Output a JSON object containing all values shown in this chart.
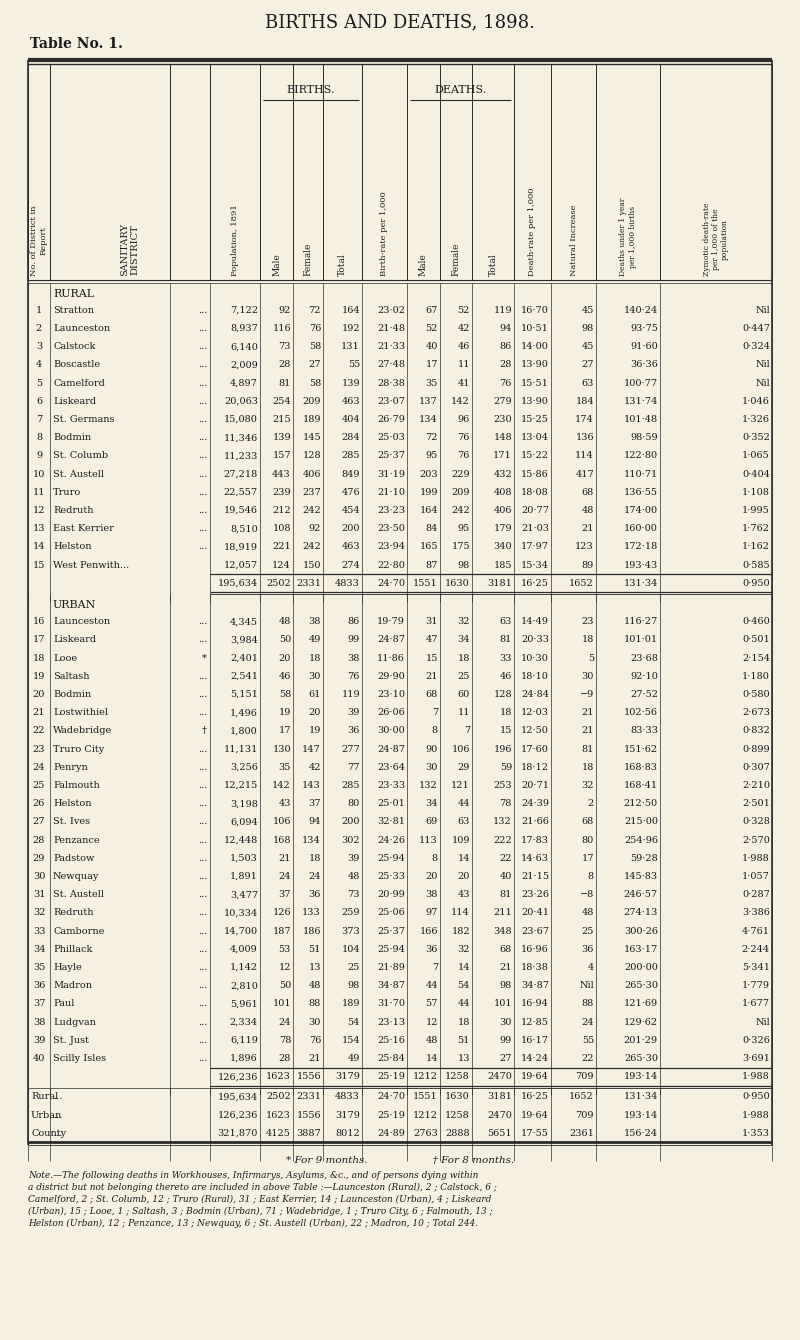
{
  "title": "BIRTHS AND DEATHS, 1898.",
  "table_label": "Table No. 1.",
  "bg_color": "#f5f0e0",
  "text_color": "#1a1a1a",
  "rural_rows": [
    [
      "1",
      "Stratton",
      "...",
      "7,122",
      "92",
      "72",
      "164",
      "23·02",
      "67",
      "52",
      "119",
      "16·70",
      "45",
      "140·24",
      "Nil"
    ],
    [
      "2",
      "Launceston",
      "...",
      "8,937",
      "116",
      "76",
      "192",
      "21·48",
      "52",
      "42",
      "94",
      "10·51",
      "98",
      "93·75",
      "0·447"
    ],
    [
      "3",
      "Calstock",
      "...",
      "6,140",
      "73",
      "58",
      "131",
      "21·33",
      "40",
      "46",
      "86",
      "14·00",
      "45",
      "91·60",
      "0·324"
    ],
    [
      "4",
      "Boscastle",
      "...",
      "2,009",
      "28",
      "27",
      "55",
      "27·48",
      "17",
      "11",
      "28",
      "13·90",
      "27",
      "36·36",
      "Nil"
    ],
    [
      "5",
      "Camelford",
      "...",
      "4,897",
      "81",
      "58",
      "139",
      "28·38",
      "35",
      "41",
      "76",
      "15·51",
      "63",
      "100·77",
      "Nil"
    ],
    [
      "6",
      "Liskeard",
      "...",
      "20,063",
      "254",
      "209",
      "463",
      "23·07",
      "137",
      "142",
      "279",
      "13·90",
      "184",
      "131·74",
      "1·046"
    ],
    [
      "7",
      "St. Germans",
      "...",
      "15,080",
      "215",
      "189",
      "404",
      "26·79",
      "134",
      "96",
      "230",
      "15·25",
      "174",
      "101·48",
      "1·326"
    ],
    [
      "8",
      "Bodmin",
      "...",
      "11,346",
      "139",
      "145",
      "284",
      "25·03",
      "72",
      "76",
      "148",
      "13·04",
      "136",
      "98·59",
      "0·352"
    ],
    [
      "9",
      "St. Columb",
      "...",
      "11,233",
      "157",
      "128",
      "285",
      "25·37",
      "95",
      "76",
      "171",
      "15·22",
      "114",
      "122·80",
      "1·065"
    ],
    [
      "10",
      "St. Austell",
      "...",
      "27,218",
      "443",
      "406",
      "849",
      "31·19",
      "203",
      "229",
      "432",
      "15·86",
      "417",
      "110·71",
      "0·404"
    ],
    [
      "11",
      "Truro",
      "...",
      "22,557",
      "239",
      "237",
      "476",
      "21·10",
      "199",
      "209",
      "408",
      "18·08",
      "68",
      "136·55",
      "1·108"
    ],
    [
      "12",
      "Redruth",
      "...",
      "19,546",
      "212",
      "242",
      "454",
      "23·23",
      "164",
      "242",
      "406",
      "20·77",
      "48",
      "174·00",
      "1·995"
    ],
    [
      "13",
      "East Kerrier",
      "...",
      "8,510",
      "108",
      "92",
      "200",
      "23·50",
      "84",
      "95",
      "179",
      "21·03",
      "21",
      "160·00",
      "1·762"
    ],
    [
      "14",
      "Helston",
      "...",
      "18,919",
      "221",
      "242",
      "463",
      "23·94",
      "165",
      "175",
      "340",
      "17·97",
      "123",
      "172·18",
      "1·162"
    ],
    [
      "15",
      "West Penwith...",
      "",
      "12,057",
      "124",
      "150",
      "274",
      "22·80",
      "87",
      "98",
      "185",
      "15·34",
      "89",
      "193·43",
      "0·585"
    ]
  ],
  "rural_total": [
    "195,634",
    "2502",
    "2331",
    "4833",
    "24·70",
    "1551",
    "1630",
    "3181",
    "16·25",
    "1652",
    "131·34",
    "0·950"
  ],
  "urban_rows": [
    [
      "16",
      "Launceston",
      "...",
      "4,345",
      "48",
      "38",
      "86",
      "19·79",
      "31",
      "32",
      "63",
      "14·49",
      "23",
      "116·27",
      "0·460"
    ],
    [
      "17",
      "Liskeard",
      "...",
      "3,984",
      "50",
      "49",
      "99",
      "24·87",
      "47",
      "34",
      "81",
      "20·33",
      "18",
      "101·01",
      "0·501"
    ],
    [
      "18",
      "Looe",
      "*",
      "2,401",
      "20",
      "18",
      "38",
      "11·86",
      "15",
      "18",
      "33",
      "10·30",
      "5",
      "23·68",
      "2·154"
    ],
    [
      "19",
      "Saltash",
      "...",
      "2,541",
      "46",
      "30",
      "76",
      "29·90",
      "21",
      "25",
      "46",
      "18·10",
      "30",
      "92·10",
      "1·180"
    ],
    [
      "20",
      "Bodmin",
      "...",
      "5,151",
      "58",
      "61",
      "119",
      "23·10",
      "68",
      "60",
      "128",
      "24·84",
      "−9",
      "27·52",
      "0·580"
    ],
    [
      "21",
      "Lostwithiel",
      "...",
      "1,496",
      "19",
      "20",
      "39",
      "26·06",
      "7",
      "11",
      "18",
      "12·03",
      "21",
      "102·56",
      "2·673"
    ],
    [
      "22",
      "Wadebridge",
      "†",
      "1,800",
      "17",
      "19",
      "36",
      "30·00",
      "8",
      "7",
      "15",
      "12·50",
      "21",
      "83·33",
      "0·832"
    ],
    [
      "23",
      "Truro City",
      "...",
      "11,131",
      "130",
      "147",
      "277",
      "24·87",
      "90",
      "106",
      "196",
      "17·60",
      "81",
      "151·62",
      "0·899"
    ],
    [
      "24",
      "Penryn",
      "...",
      "3,256",
      "35",
      "42",
      "77",
      "23·64",
      "30",
      "29",
      "59",
      "18·12",
      "18",
      "168·83",
      "0·307"
    ],
    [
      "25",
      "Falmouth",
      "...",
      "12,215",
      "142",
      "143",
      "285",
      "23·33",
      "132",
      "121",
      "253",
      "20·71",
      "32",
      "168·41",
      "2·210"
    ],
    [
      "26",
      "Helston",
      "...",
      "3,198",
      "43",
      "37",
      "80",
      "25·01",
      "34",
      "44",
      "78",
      "24·39",
      "2",
      "212·50",
      "2·501"
    ],
    [
      "27",
      "St. Ives",
      "...",
      "6,094",
      "106",
      "94",
      "200",
      "32·81",
      "69",
      "63",
      "132",
      "21·66",
      "68",
      "215·00",
      "0·328"
    ],
    [
      "28",
      "Penzance",
      "...",
      "12,448",
      "168",
      "134",
      "302",
      "24·26",
      "113",
      "109",
      "222",
      "17·83",
      "80",
      "254·96",
      "2·570"
    ],
    [
      "29",
      "Padstow",
      "...",
      "1,503",
      "21",
      "18",
      "39",
      "25·94",
      "8",
      "14",
      "22",
      "14·63",
      "17",
      "59·28",
      "1·988"
    ],
    [
      "30",
      "Newquay",
      "...",
      "1,891",
      "24",
      "24",
      "48",
      "25·33",
      "20",
      "20",
      "40",
      "21·15",
      "8",
      "145·83",
      "1·057"
    ],
    [
      "31",
      "St. Austell",
      "...",
      "3,477",
      "37",
      "36",
      "73",
      "20·99",
      "38",
      "43",
      "81",
      "23·26",
      "−8",
      "246·57",
      "0·287"
    ],
    [
      "32",
      "Redruth",
      "...",
      "10,334",
      "126",
      "133",
      "259",
      "25·06",
      "97",
      "114",
      "211",
      "20·41",
      "48",
      "274·13",
      "3·386"
    ],
    [
      "33",
      "Camborne",
      "...",
      "14,700",
      "187",
      "186",
      "373",
      "25·37",
      "166",
      "182",
      "348",
      "23·67",
      "25",
      "300·26",
      "4·761"
    ],
    [
      "34",
      "Phillack",
      "...",
      "4,009",
      "53",
      "51",
      "104",
      "25·94",
      "36",
      "32",
      "68",
      "16·96",
      "36",
      "163·17",
      "2·244"
    ],
    [
      "35",
      "Hayle",
      "...",
      "1,142",
      "12",
      "13",
      "25",
      "21·89",
      "7",
      "14",
      "21",
      "18·38",
      "4",
      "200·00",
      "5·341"
    ],
    [
      "36",
      "Madron",
      "...",
      "2,810",
      "50",
      "48",
      "98",
      "34·87",
      "44",
      "54",
      "98",
      "34·87",
      "Nil",
      "265·30",
      "1·779"
    ],
    [
      "37",
      "Paul",
      "...",
      "5,961",
      "101",
      "88",
      "189",
      "31·70",
      "57",
      "44",
      "101",
      "16·94",
      "88",
      "121·69",
      "1·677"
    ],
    [
      "38",
      "Ludgvan",
      "...",
      "2,334",
      "24",
      "30",
      "54",
      "23·13",
      "12",
      "18",
      "30",
      "12·85",
      "24",
      "129·62",
      "Nil"
    ],
    [
      "39",
      "St. Just",
      "...",
      "6,119",
      "78",
      "76",
      "154",
      "25·16",
      "48",
      "51",
      "99",
      "16·17",
      "55",
      "201·29",
      "0·326"
    ],
    [
      "40",
      "Scilly Isles",
      "...",
      "1,896",
      "28",
      "21",
      "49",
      "25·84",
      "14",
      "13",
      "27",
      "14·24",
      "22",
      "265·30",
      "3·691"
    ]
  ],
  "urban_total": [
    "126,236",
    "1623",
    "1556",
    "3179",
    "25·19",
    "1212",
    "1258",
    "2470",
    "19·64",
    "709",
    "193·14",
    "1·988"
  ],
  "summary_rows": [
    [
      "Rural",
      "...",
      "195,634",
      "2502",
      "2331",
      "4833",
      "24·70",
      "1551",
      "1630",
      "3181",
      "16·25",
      "1652",
      "131·34",
      "0·950"
    ],
    [
      "Urban",
      "...",
      "126,236",
      "1623",
      "1556",
      "3179",
      "25·19",
      "1212",
      "1258",
      "2470",
      "19·64",
      "709",
      "193·14",
      "1·988"
    ],
    [
      "County",
      "...",
      "321,870",
      "4125",
      "3887",
      "8012",
      "24·89",
      "2763",
      "2888",
      "5651",
      "17·55",
      "2361",
      "156·24",
      "1·353"
    ]
  ],
  "footnote1": "* For 9 months.                    † For 8 months.",
  "footnote_note": [
    "Note.—The following deaths in Workhouses, Infirmarys, Asylums, &c., and of persons dying within",
    "a district but not belonging thereto are included in above Table :—Launceston (Rural), 2 ; Calstock, 6 ;",
    "Camelford, 2 ; St. Columb, 12 ; Truro (Rural), 31 ; East Kerrier, 14 ; Launceston (Urban), 4 ; Liskeard",
    "(Urban), 15 ; Looe, 1 ; Saltash, 3 ; Bodmin (Urban), 71 ; Wadebridge, 1 ; Truro City, 6 ; Falmouth, 13 ;",
    "Helston (Urban), 12 ; Penzance, 13 ; Newquay, 6 ; St. Austell (Urban), 22 ; Madron, 10 ; Total 244."
  ]
}
